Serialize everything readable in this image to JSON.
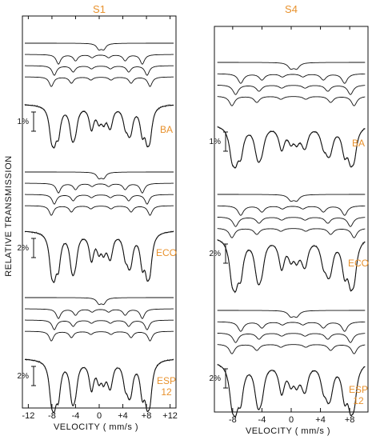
{
  "chart_data": {
    "type": "line",
    "ylabel": "RELATIVE TRANSMISSION",
    "panels": [
      {
        "title": "S1",
        "xlabel": "VELOCITY ( mm/s )",
        "xlim": [
          -13,
          13
        ],
        "xticks": [
          -12,
          -8,
          -4,
          0,
          4,
          8,
          12
        ],
        "xtick_labels": [
          "-12",
          "-8",
          "-4",
          "0",
          "+4",
          "+8",
          "+12"
        ],
        "samples": [
          {
            "label": [
              "BA"
            ],
            "scale": "1%",
            "components": [
              {
                "type": "doublet",
                "center": 0.35,
                "split": 0.8
              },
              {
                "type": "sextet",
                "positions": [
                  -6.9,
                  -4.0,
                  -1.2,
                  1.6,
                  4.4,
                  7.3
                ]
              },
              {
                "type": "sextet",
                "positions": [
                  -7.6,
                  -4.4,
                  -1.3,
                  1.9,
                  5.0,
                  8.1
                ]
              },
              {
                "type": "sextet",
                "positions": [
                  -8.1,
                  -4.7,
                  -1.4,
                  2.0,
                  5.4,
                  8.6
                ]
              }
            ]
          },
          {
            "label": [
              "ECO"
            ],
            "scale": "2%",
            "components": [
              {
                "type": "doublet",
                "center": 0.35,
                "split": 0.8
              },
              {
                "type": "sextet",
                "positions": [
                  -6.9,
                  -4.0,
                  -1.2,
                  1.6,
                  4.4,
                  7.3
                ]
              },
              {
                "type": "sextet",
                "positions": [
                  -7.6,
                  -4.4,
                  -1.3,
                  1.9,
                  5.0,
                  8.1
                ]
              },
              {
                "type": "sextet",
                "positions": [
                  -8.1,
                  -4.7,
                  -1.4,
                  2.0,
                  5.4,
                  8.6
                ]
              }
            ]
          },
          {
            "label": [
              "ESP",
              "12"
            ],
            "scale": "2%",
            "components": [
              {
                "type": "doublet",
                "center": 0.35,
                "split": 0.8
              },
              {
                "type": "sextet",
                "positions": [
                  -6.9,
                  -4.0,
                  -1.2,
                  1.6,
                  4.4,
                  7.3
                ]
              },
              {
                "type": "sextet",
                "positions": [
                  -7.6,
                  -4.4,
                  -1.3,
                  1.9,
                  5.0,
                  8.1
                ]
              },
              {
                "type": "sextet",
                "positions": [
                  -8.1,
                  -4.7,
                  -1.4,
                  2.0,
                  5.4,
                  8.6
                ]
              }
            ]
          }
        ]
      },
      {
        "title": "S4",
        "xlabel": "VELOCITY ( mm/s )",
        "xlim": [
          -10.5,
          10.5
        ],
        "xticks": [
          -8,
          -4,
          0,
          4,
          8
        ],
        "xtick_labels": [
          "-8",
          "-4",
          "0",
          "+4",
          "+8"
        ],
        "samples": [
          {
            "label": [
              "BA"
            ],
            "scale": "1%",
            "components": [
              {
                "type": "doublet",
                "center": 0.35,
                "split": 0.8
              },
              {
                "type": "sextet",
                "positions": [
                  -6.9,
                  -4.0,
                  -1.2,
                  1.6,
                  4.4,
                  7.3
                ]
              },
              {
                "type": "sextet",
                "positions": [
                  -7.6,
                  -4.4,
                  -1.3,
                  1.9,
                  5.0,
                  8.1
                ]
              },
              {
                "type": "sextet",
                "positions": [
                  -8.1,
                  -4.7,
                  -1.4,
                  2.0,
                  5.4,
                  8.6
                ]
              }
            ]
          },
          {
            "label": [
              "ECO"
            ],
            "scale": "2%",
            "components": [
              {
                "type": "doublet",
                "center": 0.35,
                "split": 0.8
              },
              {
                "type": "sextet",
                "positions": [
                  -6.9,
                  -4.0,
                  -1.2,
                  1.6,
                  4.4,
                  7.3
                ]
              },
              {
                "type": "sextet",
                "positions": [
                  -7.6,
                  -4.4,
                  -1.3,
                  1.9,
                  5.0,
                  8.1
                ]
              },
              {
                "type": "sextet",
                "positions": [
                  -8.1,
                  -4.7,
                  -1.4,
                  2.0,
                  5.4,
                  8.6
                ]
              }
            ]
          },
          {
            "label": [
              "ESP",
              "12"
            ],
            "scale": "2%",
            "components": [
              {
                "type": "doublet",
                "center": 0.35,
                "split": 0.8
              },
              {
                "type": "sextet",
                "positions": [
                  -6.9,
                  -4.0,
                  -1.2,
                  1.6,
                  4.4,
                  7.3
                ]
              },
              {
                "type": "sextet",
                "positions": [
                  -7.6,
                  -4.4,
                  -1.3,
                  1.9,
                  5.0,
                  8.1
                ]
              },
              {
                "type": "sextet",
                "positions": [
                  -8.1,
                  -4.7,
                  -1.4,
                  2.0,
                  5.4,
                  8.6
                ]
              }
            ]
          }
        ]
      }
    ]
  }
}
